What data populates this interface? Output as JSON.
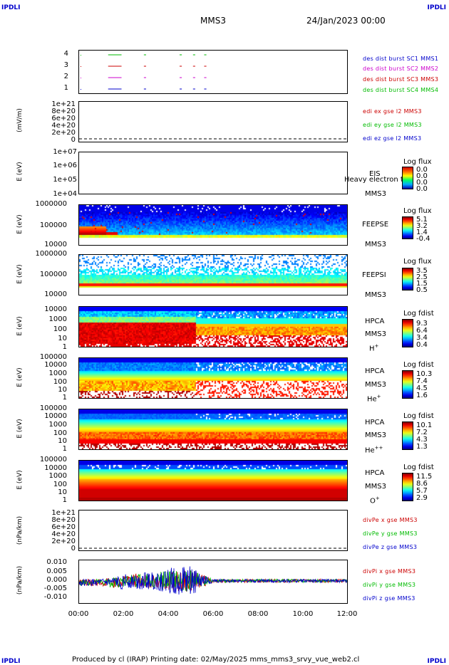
{
  "corners": {
    "tl": "IPDLI",
    "tr": "IPDLI",
    "bl": "IPDLI",
    "br": "IPDLI"
  },
  "header": {
    "title": "MMS3",
    "date": "24/Jan/2023 00:00"
  },
  "footer": "Produced by cl (IRAP)   Printing date: 02/May/2025   mms_mms3_srvy_vue_web2.cl",
  "xaxis": {
    "ticks": [
      "00:00",
      "02:00",
      "04:00",
      "06:00",
      "08:00",
      "10:00",
      "12:00"
    ],
    "range_hours": [
      0,
      12
    ]
  },
  "colors": {
    "mms1": "#0000cc",
    "mms2": "#cc00cc",
    "mms3": "#cc0000",
    "mms4": "#00bb00",
    "frame": "#000000"
  },
  "panels": {
    "burst": {
      "yticks": [
        "4",
        "3",
        "2",
        "1"
      ],
      "legend": [
        "des dist burst SC1 MMS1",
        "des dist burst SC2 MMS2",
        "des dist burst SC3 MMS3",
        "des dist burst SC4 MMS4"
      ],
      "legend_colors": [
        "#0000cc",
        "#cc00cc",
        "#cc0000",
        "#00bb00"
      ]
    },
    "edi": {
      "ytitle": "(mV/m)",
      "yticks": [
        "1e+21",
        "8e+20",
        "6e+20",
        "4e+20",
        "2e+20",
        "0"
      ],
      "legend": [
        "edi ex gse l2 MMS3",
        "edi ey gse l2 MMS3",
        "edi ez gse l2 MMS3"
      ],
      "legend_colors": [
        "#cc0000",
        "#00bb00",
        "#0000cc"
      ]
    },
    "eis": {
      "ytitle": "E (eV)",
      "yticks": [
        "1e+07",
        "1e+06",
        "1e+05",
        "1e+04"
      ],
      "inst": [
        "EIS",
        "MMS3"
      ],
      "overlay": "Heavy electron tof",
      "cbar_title": "Log flux",
      "cbar_ticks": [
        "0.0",
        "0.0",
        "0.0",
        "0.0"
      ]
    },
    "feepse": {
      "ytitle": "E (eV)",
      "yticks": [
        "1000000",
        "100000",
        "10000"
      ],
      "inst": [
        "FEEPSE",
        "MMS3"
      ],
      "cbar_title": "Log flux",
      "cbar_ticks": [
        "5.1",
        "3.2",
        "1.4",
        "-0.4"
      ]
    },
    "feepsi": {
      "ytitle": "E (eV)",
      "yticks": [
        "1000000",
        "100000",
        "10000"
      ],
      "inst": [
        "FEEPSI",
        "MMS3"
      ],
      "cbar_title": "Log flux",
      "cbar_ticks": [
        "3.5",
        "2.5",
        "1.5",
        "0.5"
      ]
    },
    "hpca_h": {
      "ytitle": "E (eV)",
      "yticks": [
        "10000",
        "1000",
        "100",
        "10",
        "1"
      ],
      "inst": [
        "HPCA",
        "MMS3"
      ],
      "species": "H",
      "species_sup": "+",
      "cbar_title": "Log fdist",
      "cbar_ticks": [
        "9.3",
        "6.4",
        "3.4",
        "0.4"
      ]
    },
    "hpca_he": {
      "ytitle": "E (eV)",
      "yticks": [
        "100000",
        "10000",
        "1000",
        "100",
        "10",
        "1"
      ],
      "inst": [
        "HPCA",
        "MMS3"
      ],
      "species": "He",
      "species_sup": "+",
      "cbar_title": "Log fdist",
      "cbar_ticks": [
        "10.3",
        "7.4",
        "4.5",
        "1.6"
      ]
    },
    "hpca_he2": {
      "ytitle": "E (eV)",
      "yticks": [
        "100000",
        "10000",
        "1000",
        "100",
        "10",
        "1"
      ],
      "inst": [
        "HPCA",
        "MMS3"
      ],
      "species": "He",
      "species_sup": "++",
      "cbar_title": "Log fdist",
      "cbar_ticks": [
        "10.1",
        "7.2",
        "4.3",
        "1.3"
      ]
    },
    "hpca_o": {
      "ytitle": "E (eV)",
      "yticks": [
        "100000",
        "10000",
        "1000",
        "100",
        "10",
        "1"
      ],
      "inst": [
        "HPCA",
        "MMS3"
      ],
      "species": "O",
      "species_sup": "+",
      "cbar_title": "Log fdist",
      "cbar_ticks": [
        "11.5",
        "8.6",
        "5.7",
        "2.9"
      ]
    },
    "divpe": {
      "ytitle": "(nPa/km)",
      "yticks": [
        "1e+21",
        "8e+20",
        "6e+20",
        "4e+20",
        "2e+20",
        "0"
      ],
      "legend": [
        "divPe x gse MMS3",
        "divPe y gse MMS3",
        "divPe z gse MMS3"
      ],
      "legend_colors": [
        "#cc0000",
        "#00bb00",
        "#0000cc"
      ]
    },
    "divpi": {
      "ytitle": "(nPa/km)",
      "yticks": [
        "0.010",
        "0.005",
        "0.000",
        "-0.005",
        "-0.010"
      ],
      "legend": [
        "divPi x gse MMS3",
        "divPi y gse MMS3",
        "divPi z gse MMS3"
      ],
      "legend_colors": [
        "#cc0000",
        "#00bb00",
        "#0000cc"
      ]
    }
  },
  "chart_data": [
    {
      "type": "line",
      "title": "",
      "ylabel": "",
      "series": [
        {
          "name": "des dist burst SC1 MMS1",
          "level": 1,
          "intervals_hours": [
            [
              1.3,
              1.9
            ],
            [
              2.9,
              3.0
            ],
            [
              4.5,
              4.6
            ],
            [
              5.1,
              5.2
            ],
            [
              5.6,
              5.7
            ]
          ]
        },
        {
          "name": "des dist burst SC2 MMS2",
          "level": 2,
          "intervals_hours": [
            [
              1.3,
              1.9
            ],
            [
              2.9,
              3.0
            ],
            [
              4.5,
              4.6
            ],
            [
              5.1,
              5.2
            ],
            [
              5.6,
              5.7
            ]
          ]
        },
        {
          "name": "des dist burst SC3 MMS3",
          "level": 3,
          "intervals_hours": [
            [
              1.3,
              1.9
            ],
            [
              2.9,
              3.0
            ],
            [
              4.5,
              4.6
            ],
            [
              5.1,
              5.2
            ],
            [
              5.6,
              5.7
            ]
          ]
        },
        {
          "name": "des dist burst SC4 MMS4",
          "level": 4,
          "intervals_hours": [
            [
              1.3,
              1.9
            ],
            [
              2.9,
              3.0
            ],
            [
              4.5,
              4.6
            ],
            [
              5.1,
              5.2
            ],
            [
              5.6,
              5.7
            ]
          ]
        }
      ]
    },
    {
      "type": "line",
      "ylabel": "(mV/m)",
      "ylim": [
        0,
        1e+21
      ],
      "series": [
        {
          "name": "edi ex gse l2 MMS3",
          "values": []
        },
        {
          "name": "edi ey gse l2 MMS3",
          "values": []
        },
        {
          "name": "edi ez gse l2 MMS3",
          "values": []
        }
      ]
    },
    {
      "type": "heatmap",
      "ylabel": "E (eV)",
      "ylim": [
        10000.0,
        10000000.0
      ],
      "scale": "log",
      "zlabel": "Log flux",
      "zlim": [
        0.0,
        0.0
      ]
    },
    {
      "type": "heatmap",
      "ylabel": "E (eV)",
      "ylim": [
        10000.0,
        1000000.0
      ],
      "scale": "log",
      "zlabel": "Log flux",
      "zlim": [
        -0.4,
        5.1
      ]
    },
    {
      "type": "heatmap",
      "ylabel": "E (eV)",
      "ylim": [
        10000.0,
        1000000.0
      ],
      "scale": "log",
      "zlabel": "Log flux",
      "zlim": [
        0.5,
        3.5
      ]
    },
    {
      "type": "heatmap",
      "ylabel": "E (eV)",
      "ylim": [
        1,
        10000.0
      ],
      "scale": "log",
      "zlabel": "Log fdist",
      "zlim": [
        0.4,
        9.3
      ]
    },
    {
      "type": "heatmap",
      "ylabel": "E (eV)",
      "ylim": [
        1,
        100000.0
      ],
      "scale": "log",
      "zlabel": "Log fdist",
      "zlim": [
        1.6,
        10.3
      ]
    },
    {
      "type": "heatmap",
      "ylabel": "E (eV)",
      "ylim": [
        1,
        100000.0
      ],
      "scale": "log",
      "zlabel": "Log fdist",
      "zlim": [
        1.3,
        10.1
      ]
    },
    {
      "type": "heatmap",
      "ylabel": "E (eV)",
      "ylim": [
        1,
        100000.0
      ],
      "scale": "log",
      "zlabel": "Log fdist",
      "zlim": [
        2.9,
        11.5
      ]
    },
    {
      "type": "line",
      "ylabel": "(nPa/km)",
      "ylim": [
        0,
        1e+21
      ],
      "series": [
        {
          "name": "divPe x gse MMS3",
          "values": []
        },
        {
          "name": "divPe y gse MMS3",
          "values": []
        },
        {
          "name": "divPe z gse MMS3",
          "values": []
        }
      ]
    },
    {
      "type": "line",
      "ylabel": "(nPa/km)",
      "ylim": [
        -0.013,
        0.012
      ],
      "x_hours": [
        0,
        0.5,
        1,
        1.5,
        2,
        2.5,
        3,
        3.5,
        4,
        4.5,
        5,
        5.5,
        6,
        7,
        8,
        9,
        10,
        11,
        12
      ],
      "series": [
        {
          "name": "divPi x gse MMS3",
          "amplitude": [
            0.002,
            0.002,
            0.002,
            0.003,
            0.003,
            0.004,
            0.004,
            0.005,
            0.006,
            0.006,
            0.007,
            0.004,
            0.001,
            0.001,
            0.001,
            0.001,
            0.001,
            0.001,
            0.001
          ]
        },
        {
          "name": "divPi y gse MMS3",
          "amplitude": [
            0.002,
            0.002,
            0.002,
            0.003,
            0.003,
            0.004,
            0.004,
            0.005,
            0.006,
            0.006,
            0.007,
            0.004,
            0.001,
            0.001,
            0.001,
            0.001,
            0.001,
            0.001,
            0.001
          ]
        },
        {
          "name": "divPi z gse MMS3",
          "amplitude": [
            0.002,
            0.002,
            0.002,
            0.003,
            0.004,
            0.005,
            0.005,
            0.006,
            0.008,
            0.008,
            0.009,
            0.005,
            0.001,
            0.001,
            0.001,
            0.001,
            0.001,
            0.001,
            0.001
          ]
        }
      ]
    }
  ]
}
